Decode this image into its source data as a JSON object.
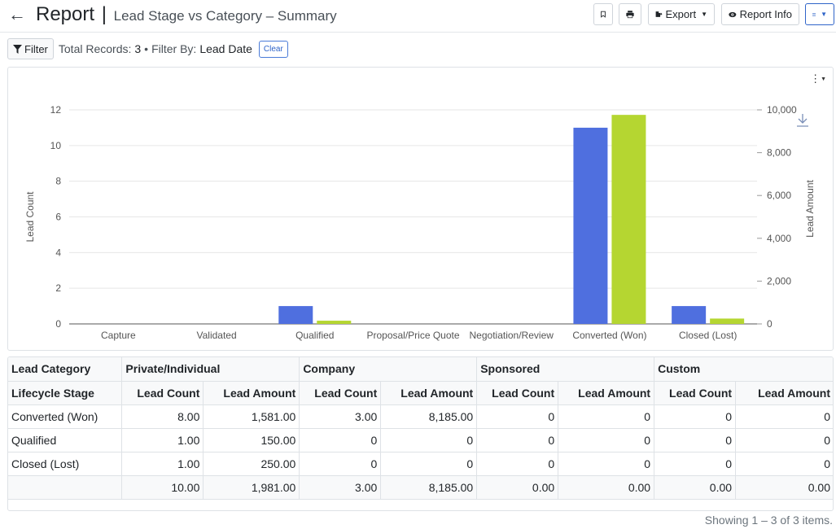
{
  "header": {
    "title": "Report",
    "separator": "|",
    "subtitle": "Lead Stage vs Category – Summary",
    "export_label": "Export",
    "report_info_label": "Report Info"
  },
  "filterbar": {
    "filter_label": "Filter",
    "total_records_label": "Total Records:",
    "total_records_value": "3",
    "bullet": "•",
    "filter_by_label": "Filter By:",
    "filter_by_value": "Lead Date",
    "clear_label": "Clear"
  },
  "colors": {
    "lead_count_bar": "#4f6fdf",
    "lead_amount_bar": "#b5d631",
    "accent": "#2f64c9"
  },
  "chart_data": {
    "type": "bar",
    "categories": [
      "Capture",
      "Validated",
      "Qualified",
      "Proposal/Price Quote",
      "Negotiation/Review",
      "Converted (Won)",
      "Closed (Lost)"
    ],
    "series": [
      {
        "axis": "left",
        "values": [
          0,
          0,
          1,
          0,
          0,
          11,
          1
        ]
      },
      {
        "axis": "right",
        "values": [
          0,
          0,
          150,
          0,
          0,
          9766,
          250
        ]
      }
    ],
    "ylabel": "Lead Count",
    "ylabel_right": "Lead Amount",
    "ylim": [
      0,
      12
    ],
    "ylim_right": [
      0,
      10000
    ],
    "yticks": [
      "0",
      "2",
      "4",
      "6",
      "8",
      "10",
      "12"
    ],
    "yticks_right": [
      "0",
      "2,000",
      "4,000",
      "6,000",
      "8,000",
      "10,000"
    ],
    "grid": true
  },
  "table": {
    "group_header_label": "Lead Category",
    "groups": [
      "Private/Individual",
      "Company",
      "Sponsored",
      "Custom"
    ],
    "row_header_label": "Lifecycle Stage",
    "sub_headers": [
      "Lead Count",
      "Lead Amount"
    ],
    "rows": [
      {
        "stage": "Converted (Won)",
        "cells": [
          "8.00",
          "1,581.00",
          "3.00",
          "8,185.00",
          "0",
          "0",
          "0",
          "0"
        ]
      },
      {
        "stage": "Qualified",
        "cells": [
          "1.00",
          "150.00",
          "0",
          "0",
          "0",
          "0",
          "0",
          "0"
        ]
      },
      {
        "stage": "Closed (Lost)",
        "cells": [
          "1.00",
          "250.00",
          "0",
          "0",
          "0",
          "0",
          "0",
          "0"
        ]
      }
    ],
    "totals": [
      "10.00",
      "1,981.00",
      "3.00",
      "8,185.00",
      "0.00",
      "0.00",
      "0.00",
      "0.00"
    ]
  },
  "footer": {
    "pager_text": "Showing 1 – 3 of 3 items."
  }
}
